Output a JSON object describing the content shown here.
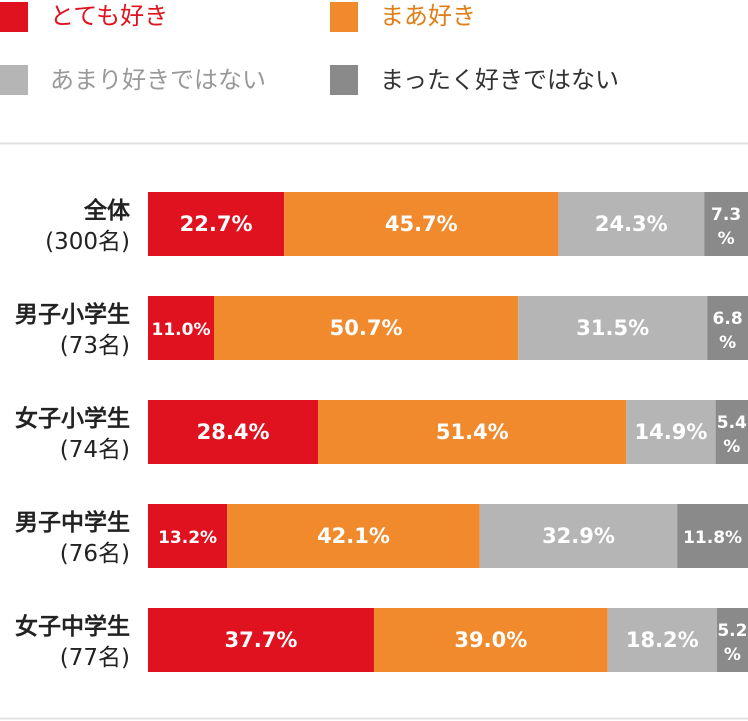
{
  "chart_data": {
    "type": "bar",
    "orientation": "horizontal",
    "stacked": true,
    "unit": "%",
    "series": [
      {
        "name": "とても好き",
        "color": "#e0121f",
        "text_color": "#e0121f",
        "values": [
          22.7,
          11.0,
          28.4,
          13.2,
          37.7
        ]
      },
      {
        "name": "まあ好き",
        "color": "#f08a2c",
        "text_color": "#e07f17",
        "values": [
          45.7,
          50.7,
          51.4,
          42.1,
          39.0
        ]
      },
      {
        "name": "あまり好きではない",
        "color": "#b5b5b5",
        "text_color": "#999999",
        "values": [
          24.3,
          31.5,
          14.9,
          32.9,
          18.2
        ]
      },
      {
        "name": "まったく好きではない",
        "color": "#8a8a8a",
        "text_color": "#333333",
        "values": [
          7.3,
          6.8,
          5.4,
          11.8,
          5.2
        ]
      }
    ],
    "categories": [
      {
        "name": "全体",
        "count": "(300名)"
      },
      {
        "name": "男子小学生",
        "count": "(73名)"
      },
      {
        "name": "女子小学生",
        "count": "(74名)"
      },
      {
        "name": "男子中学生",
        "count": "(76名)"
      },
      {
        "name": "女子中学生",
        "count": "(77名)"
      }
    ],
    "value_labels": [
      [
        "22.7%",
        "45.7%",
        "24.3%",
        "7.3%"
      ],
      [
        "11.0%",
        "50.7%",
        "31.5%",
        "6.8%"
      ],
      [
        "28.4%",
        "51.4%",
        "14.9%",
        "5.4%"
      ],
      [
        "13.2%",
        "42.1%",
        "32.9%",
        "11.8%"
      ],
      [
        "37.7%",
        "39.0%",
        "18.2%",
        "5.2%"
      ]
    ],
    "xlim": [
      0,
      100
    ],
    "legend_position": "top"
  }
}
